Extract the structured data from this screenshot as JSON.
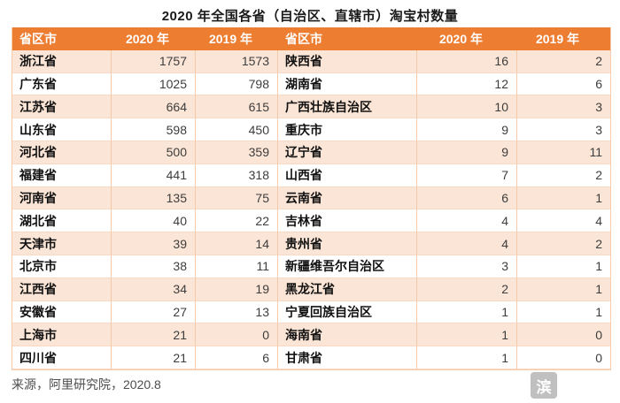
{
  "title": "2020 年全国各省（自治区、直辖市）淘宝村数量",
  "source_note": "来源，阿里研究院，2020.8",
  "watermark_glyph": "滨",
  "colors": {
    "header_bg": "#ed7d31",
    "alt_row_bg": "#fbe5d6",
    "grid_line": "#f6c9a8",
    "header_text": "#ffffff",
    "number_text": "#3d3d3d"
  },
  "columns": [
    "省区市",
    "2020 年",
    "2019 年",
    "省区市",
    "2020 年",
    "2019 年"
  ],
  "chart_data": {
    "type": "table",
    "title": "2020 年全国各省（自治区、直辖市）淘宝村数量",
    "columns": [
      "省区市",
      "2020 年",
      "2019 年",
      "省区市",
      "2020 年",
      "2019 年"
    ],
    "left_rows": [
      [
        "浙江省",
        1757,
        1573
      ],
      [
        "广东省",
        1025,
        798
      ],
      [
        "江苏省",
        664,
        615
      ],
      [
        "山东省",
        598,
        450
      ],
      [
        "河北省",
        500,
        359
      ],
      [
        "福建省",
        441,
        318
      ],
      [
        "河南省",
        135,
        75
      ],
      [
        "湖北省",
        40,
        22
      ],
      [
        "天津市",
        39,
        14
      ],
      [
        "北京市",
        38,
        11
      ],
      [
        "江西省",
        34,
        19
      ],
      [
        "安徽省",
        27,
        13
      ],
      [
        "上海市",
        21,
        0
      ],
      [
        "四川省",
        21,
        6
      ]
    ],
    "right_rows": [
      [
        "陕西省",
        16,
        2
      ],
      [
        "湖南省",
        12,
        6
      ],
      [
        "广西壮族自治区",
        10,
        3
      ],
      [
        "重庆市",
        9,
        3
      ],
      [
        "辽宁省",
        9,
        11
      ],
      [
        "山西省",
        7,
        2
      ],
      [
        "云南省",
        6,
        1
      ],
      [
        "吉林省",
        4,
        4
      ],
      [
        "贵州省",
        4,
        2
      ],
      [
        "新疆维吾尔自治区",
        3,
        1
      ],
      [
        "黑龙江省",
        2,
        1
      ],
      [
        "宁夏回族自治区",
        1,
        1
      ],
      [
        "海南省",
        1,
        0
      ],
      [
        "甘肃省",
        1,
        0
      ]
    ]
  }
}
